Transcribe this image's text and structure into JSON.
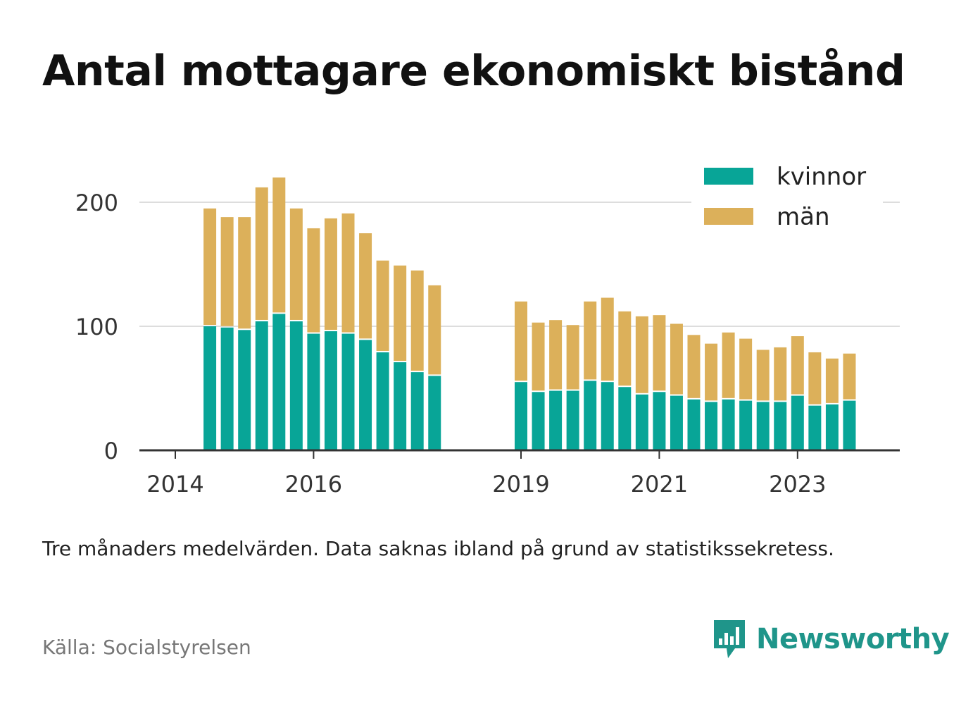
{
  "title": "Antal mottagare ekonomiskt bistånd",
  "subtitle": "Tre månaders medelvärden. Data saknas ibland på grund av statistikssekretess.",
  "source": "Källa: Socialstyrelsen",
  "brand": {
    "name": "Newsworthy",
    "color": "#1f958a",
    "icon": "newsworthy-logo-icon"
  },
  "colors": {
    "kvinnor": "#08a597",
    "man": "#dcb05a",
    "grid": "#dddddd",
    "axis": "#333333"
  },
  "chart_data": {
    "type": "bar",
    "stacked": true,
    "title": "",
    "xlabel": "",
    "ylabel": "",
    "ylim": [
      0,
      220
    ],
    "yticks": [
      "0",
      "100",
      "200"
    ],
    "xticks": [
      "2014",
      "2016",
      "2019",
      "2021",
      "2023"
    ],
    "grid": true,
    "legend_position": "top-right",
    "legend": [
      "kvinnor",
      "män"
    ],
    "series": [
      {
        "name": "kvinnor",
        "x": [
          2014.5,
          2014.75,
          2015,
          2015.25,
          2015.5,
          2015.75,
          2016,
          2016.25,
          2016.5,
          2016.75,
          2017,
          2017.25,
          2017.5,
          2017.75,
          2019,
          2019.25,
          2019.5,
          2019.75,
          2020,
          2020.25,
          2020.5,
          2020.75,
          2021,
          2021.25,
          2021.5,
          2021.75,
          2022,
          2022.25,
          2022.5,
          2022.75,
          2023,
          2023.25,
          2023.5,
          2023.75
        ],
        "values": [
          100,
          99,
          97,
          104,
          110,
          104,
          94,
          96,
          94,
          89,
          79,
          71,
          63,
          60,
          55,
          47,
          48,
          48,
          56,
          55,
          51,
          45,
          47,
          44,
          41,
          39,
          41,
          40,
          39,
          39,
          44,
          36,
          37,
          40
        ]
      },
      {
        "name": "män",
        "x": [
          2014.5,
          2014.75,
          2015,
          2015.25,
          2015.5,
          2015.75,
          2016,
          2016.25,
          2016.5,
          2016.75,
          2017,
          2017.25,
          2017.5,
          2017.75,
          2019,
          2019.25,
          2019.5,
          2019.75,
          2020,
          2020.25,
          2020.5,
          2020.75,
          2021,
          2021.25,
          2021.5,
          2021.75,
          2022,
          2022.25,
          2022.5,
          2022.75,
          2023,
          2023.25,
          2023.5,
          2023.75
        ],
        "values": [
          95,
          89,
          91,
          108,
          110,
          91,
          85,
          91,
          97,
          86,
          74,
          78,
          82,
          73,
          65,
          56,
          57,
          53,
          64,
          68,
          61,
          63,
          62,
          58,
          52,
          47,
          54,
          50,
          42,
          44,
          48,
          43,
          37,
          38
        ]
      }
    ]
  }
}
